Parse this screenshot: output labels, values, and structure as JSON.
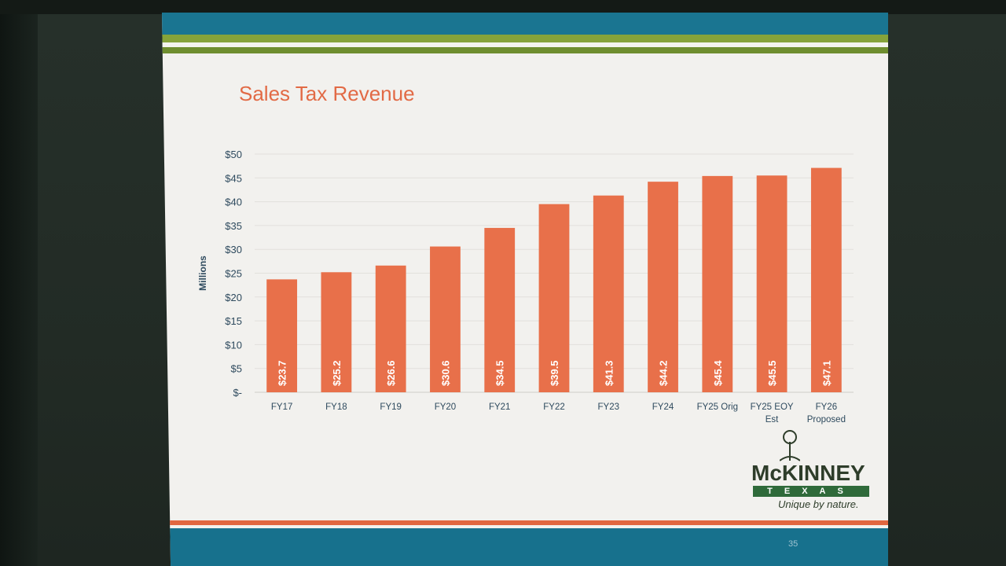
{
  "slide": {
    "title": "Sales Tax Revenue",
    "page_number": "35"
  },
  "logo": {
    "name": "McKINNEY",
    "state": "TEXAS",
    "tagline": "Unique by nature."
  },
  "colors": {
    "bar": "#e8704a",
    "title": "#e26a45",
    "axis_text": "#2e4a5e",
    "blue_band": "#1a7591",
    "green_band": "#86a33a"
  },
  "chart_data": {
    "type": "bar",
    "title": "",
    "xlabel": "",
    "ylabel": "Millions",
    "ylim": [
      0,
      50
    ],
    "y_ticks": [
      0,
      5,
      10,
      15,
      20,
      25,
      30,
      35,
      40,
      45,
      50
    ],
    "y_tick_labels": [
      "$-",
      "$5",
      "$10",
      "$15",
      "$20",
      "$25",
      "$30",
      "$35",
      "$40",
      "$45",
      "$50"
    ],
    "categories": [
      "FY17",
      "FY18",
      "FY19",
      "FY20",
      "FY21",
      "FY22",
      "FY23",
      "FY24",
      "FY25 Orig",
      "FY25 EOY Est",
      "FY26 Proposed"
    ],
    "values": [
      23.7,
      25.2,
      26.6,
      30.6,
      34.5,
      39.5,
      41.3,
      44.2,
      45.4,
      45.5,
      47.1
    ],
    "data_labels": [
      "$23.7",
      "$25.2",
      "$26.6",
      "$30.6",
      "$34.5",
      "$39.5",
      "$41.3",
      "$44.2",
      "$45.4",
      "$45.5",
      "$47.1"
    ],
    "grid": true,
    "legend": "none"
  }
}
